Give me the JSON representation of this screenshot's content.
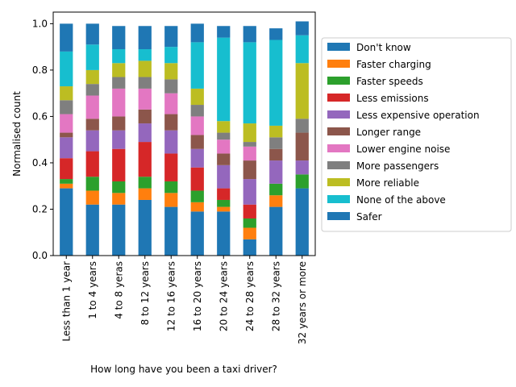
{
  "chart_data": {
    "type": "bar",
    "stacked": true,
    "title": "",
    "xlabel": "How long have you been a taxi driver?",
    "ylabel": "Normalised count",
    "ylim": [
      0,
      1.05
    ],
    "yticks": [
      "0.0",
      "0.2",
      "0.4",
      "0.6",
      "0.8",
      "1.0"
    ],
    "legend_position": "center-right outside",
    "grid": false,
    "categories": [
      "Less than 1 year",
      "1 to 4 years",
      "4 to 8 yeras",
      "8 to 12 years",
      "12 to 16 years",
      "16 to 20 years",
      "20 to 24 years",
      "24 to 28 years",
      "28 to 32 years",
      "32 years or more"
    ],
    "series": [
      {
        "name": "Don't know",
        "color": "#1f77b4",
        "values": [
          0.29,
          0.22,
          0.22,
          0.24,
          0.21,
          0.19,
          0.19,
          0.07,
          0.21,
          0.29
        ]
      },
      {
        "name": "Faster charging",
        "color": "#ff7f0e",
        "values": [
          0.02,
          0.06,
          0.05,
          0.05,
          0.06,
          0.04,
          0.02,
          0.05,
          0.05,
          0.0
        ]
      },
      {
        "name": "Faster speeds",
        "color": "#2ca02c",
        "values": [
          0.02,
          0.06,
          0.05,
          0.05,
          0.05,
          0.05,
          0.03,
          0.04,
          0.05,
          0.06
        ]
      },
      {
        "name": "Less emissions",
        "color": "#d62728",
        "values": [
          0.09,
          0.11,
          0.14,
          0.15,
          0.12,
          0.1,
          0.05,
          0.06,
          0.0,
          0.0
        ]
      },
      {
        "name": "Less expensive operation",
        "color": "#9467bd",
        "values": [
          0.09,
          0.09,
          0.08,
          0.08,
          0.1,
          0.08,
          0.1,
          0.11,
          0.1,
          0.06
        ]
      },
      {
        "name": "Longer range",
        "color": "#8c564b",
        "values": [
          0.02,
          0.05,
          0.06,
          0.06,
          0.07,
          0.06,
          0.05,
          0.08,
          0.05,
          0.12
        ]
      },
      {
        "name": "Lower engine noise",
        "color": "#e377c2",
        "values": [
          0.08,
          0.1,
          0.12,
          0.09,
          0.09,
          0.08,
          0.06,
          0.06,
          0.0,
          0.0
        ]
      },
      {
        "name": "More passengers",
        "color": "#7f7f7f",
        "values": [
          0.06,
          0.05,
          0.05,
          0.05,
          0.06,
          0.05,
          0.03,
          0.02,
          0.05,
          0.06
        ]
      },
      {
        "name": "More reliable",
        "color": "#bcbd22",
        "values": [
          0.06,
          0.06,
          0.06,
          0.07,
          0.07,
          0.07,
          0.05,
          0.08,
          0.05,
          0.24
        ]
      },
      {
        "name": "None of the above",
        "color": "#17becf",
        "values": [
          0.15,
          0.11,
          0.06,
          0.05,
          0.07,
          0.2,
          0.36,
          0.35,
          0.37,
          0.12
        ]
      },
      {
        "name": "Safer",
        "color": "#1f77b4",
        "values": [
          0.12,
          0.09,
          0.1,
          0.1,
          0.09,
          0.08,
          0.05,
          0.07,
          0.05,
          0.06
        ]
      }
    ]
  }
}
